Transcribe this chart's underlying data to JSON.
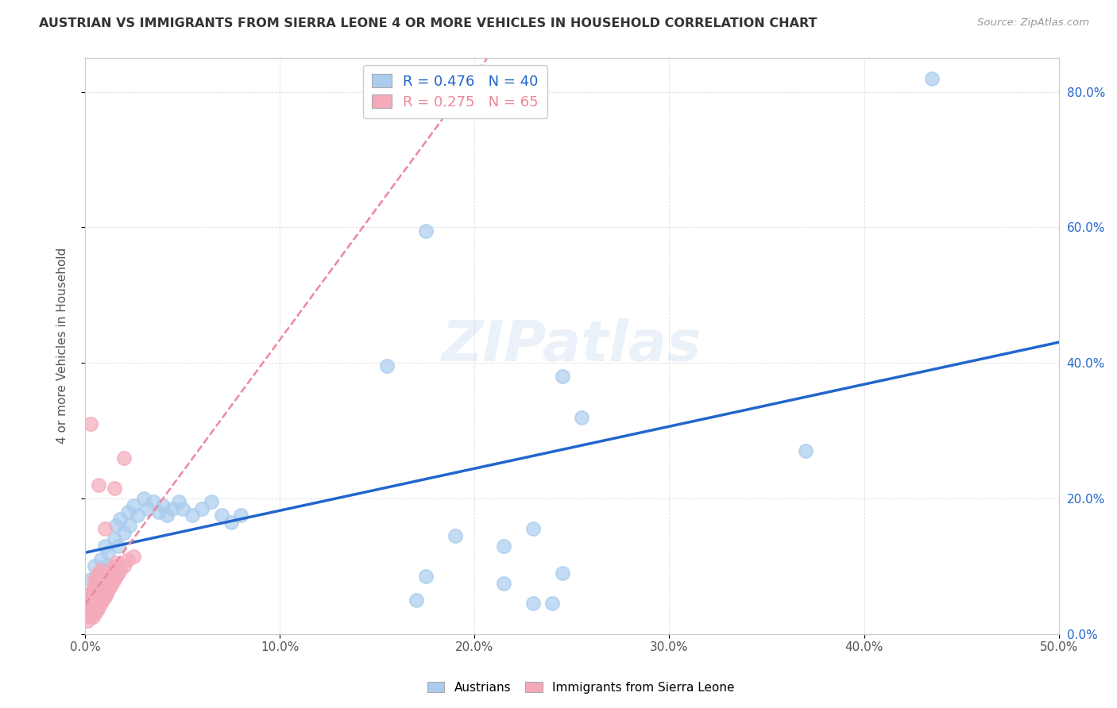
{
  "title": "AUSTRIAN VS IMMIGRANTS FROM SIERRA LEONE 4 OR MORE VEHICLES IN HOUSEHOLD CORRELATION CHART",
  "source": "Source: ZipAtlas.com",
  "ylabel": "4 or more Vehicles in Household",
  "xlim": [
    0.0,
    0.5
  ],
  "ylim": [
    0.0,
    0.85
  ],
  "xticks": [
    0.0,
    0.1,
    0.2,
    0.3,
    0.4,
    0.5
  ],
  "yticks": [
    0.0,
    0.2,
    0.4,
    0.6,
    0.8
  ],
  "xtick_labels": [
    "0.0%",
    "10.0%",
    "20.0%",
    "30.0%",
    "40.0%",
    "50.0%"
  ],
  "ytick_labels": [
    "0.0%",
    "20.0%",
    "40.0%",
    "60.0%",
    "80.0%"
  ],
  "background_color": "#ffffff",
  "grid_color": "#dddddd",
  "austrian_color": "#aaccee",
  "sierra_leone_color": "#f4aabb",
  "austrian_line_color": "#2266cc",
  "sierra_leone_line_color": "#ee8899",
  "austrian_scatter": [
    [
      0.003,
      0.08
    ],
    [
      0.004,
      0.06
    ],
    [
      0.005,
      0.1
    ],
    [
      0.006,
      0.07
    ],
    [
      0.007,
      0.09
    ],
    [
      0.008,
      0.11
    ],
    [
      0.009,
      0.08
    ],
    [
      0.01,
      0.13
    ],
    [
      0.011,
      0.1
    ],
    [
      0.012,
      0.12
    ],
    [
      0.013,
      0.09
    ],
    [
      0.015,
      0.14
    ],
    [
      0.016,
      0.16
    ],
    [
      0.017,
      0.13
    ],
    [
      0.018,
      0.17
    ],
    [
      0.02,
      0.15
    ],
    [
      0.022,
      0.18
    ],
    [
      0.023,
      0.16
    ],
    [
      0.025,
      0.19
    ],
    [
      0.027,
      0.175
    ],
    [
      0.03,
      0.2
    ],
    [
      0.032,
      0.185
    ],
    [
      0.035,
      0.195
    ],
    [
      0.038,
      0.18
    ],
    [
      0.04,
      0.19
    ],
    [
      0.042,
      0.175
    ],
    [
      0.045,
      0.185
    ],
    [
      0.048,
      0.195
    ],
    [
      0.05,
      0.185
    ],
    [
      0.055,
      0.175
    ],
    [
      0.06,
      0.185
    ],
    [
      0.065,
      0.195
    ],
    [
      0.07,
      0.175
    ],
    [
      0.075,
      0.165
    ],
    [
      0.08,
      0.175
    ],
    [
      0.155,
      0.395
    ],
    [
      0.175,
      0.595
    ],
    [
      0.245,
      0.38
    ],
    [
      0.255,
      0.32
    ],
    [
      0.435,
      0.82
    ],
    [
      0.19,
      0.145
    ],
    [
      0.215,
      0.13
    ],
    [
      0.23,
      0.155
    ],
    [
      0.175,
      0.085
    ],
    [
      0.215,
      0.075
    ],
    [
      0.245,
      0.09
    ],
    [
      0.17,
      0.05
    ],
    [
      0.23,
      0.045
    ],
    [
      0.24,
      0.045
    ],
    [
      0.37,
      0.27
    ]
  ],
  "sierra_leone_scatter": [
    [
      0.001,
      0.02
    ],
    [
      0.002,
      0.025
    ],
    [
      0.002,
      0.035
    ],
    [
      0.003,
      0.03
    ],
    [
      0.003,
      0.04
    ],
    [
      0.003,
      0.05
    ],
    [
      0.003,
      0.06
    ],
    [
      0.004,
      0.025
    ],
    [
      0.004,
      0.035
    ],
    [
      0.004,
      0.045
    ],
    [
      0.004,
      0.055
    ],
    [
      0.004,
      0.065
    ],
    [
      0.005,
      0.03
    ],
    [
      0.005,
      0.04
    ],
    [
      0.005,
      0.05
    ],
    [
      0.005,
      0.06
    ],
    [
      0.005,
      0.07
    ],
    [
      0.005,
      0.08
    ],
    [
      0.006,
      0.035
    ],
    [
      0.006,
      0.045
    ],
    [
      0.006,
      0.055
    ],
    [
      0.006,
      0.065
    ],
    [
      0.006,
      0.075
    ],
    [
      0.006,
      0.085
    ],
    [
      0.007,
      0.04
    ],
    [
      0.007,
      0.05
    ],
    [
      0.007,
      0.06
    ],
    [
      0.007,
      0.07
    ],
    [
      0.007,
      0.08
    ],
    [
      0.007,
      0.09
    ],
    [
      0.008,
      0.045
    ],
    [
      0.008,
      0.055
    ],
    [
      0.008,
      0.065
    ],
    [
      0.008,
      0.075
    ],
    [
      0.008,
      0.085
    ],
    [
      0.008,
      0.095
    ],
    [
      0.009,
      0.05
    ],
    [
      0.009,
      0.06
    ],
    [
      0.009,
      0.07
    ],
    [
      0.009,
      0.08
    ],
    [
      0.01,
      0.055
    ],
    [
      0.01,
      0.07
    ],
    [
      0.01,
      0.085
    ],
    [
      0.011,
      0.06
    ],
    [
      0.011,
      0.075
    ],
    [
      0.012,
      0.065
    ],
    [
      0.012,
      0.085
    ],
    [
      0.013,
      0.07
    ],
    [
      0.013,
      0.09
    ],
    [
      0.014,
      0.075
    ],
    [
      0.014,
      0.095
    ],
    [
      0.015,
      0.08
    ],
    [
      0.015,
      0.1
    ],
    [
      0.016,
      0.085
    ],
    [
      0.016,
      0.105
    ],
    [
      0.017,
      0.09
    ],
    [
      0.018,
      0.095
    ],
    [
      0.02,
      0.1
    ],
    [
      0.022,
      0.11
    ],
    [
      0.025,
      0.115
    ],
    [
      0.003,
      0.31
    ],
    [
      0.007,
      0.22
    ],
    [
      0.01,
      0.155
    ],
    [
      0.015,
      0.215
    ],
    [
      0.02,
      0.26
    ]
  ]
}
